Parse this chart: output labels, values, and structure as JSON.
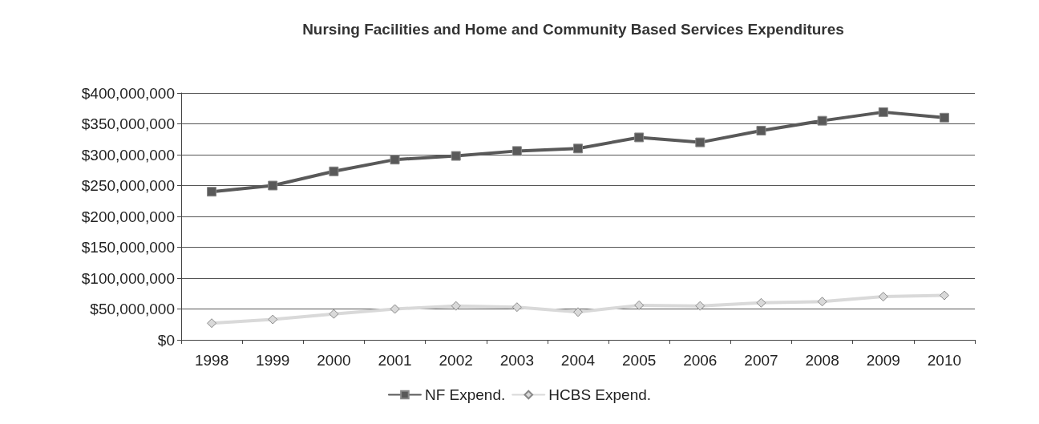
{
  "chart_data": {
    "type": "line",
    "title": "Nursing Facilities and Home and Community Based Services Expenditures",
    "categories": [
      "1998",
      "1999",
      "2000",
      "2001",
      "2002",
      "2003",
      "2004",
      "2005",
      "2006",
      "2007",
      "2008",
      "2009",
      "2010"
    ],
    "series": [
      {
        "name": "NF Expend.",
        "color": "#595959",
        "marker": "square",
        "values": [
          240000000,
          250000000,
          273000000,
          292000000,
          298000000,
          306000000,
          310000000,
          328000000,
          320000000,
          339000000,
          355000000,
          369000000,
          360000000
        ]
      },
      {
        "name": "HCBS Expend.",
        "color": "#d9d9d9",
        "marker": "diamond",
        "values": [
          27000000,
          33000000,
          42000000,
          50000000,
          55000000,
          53000000,
          45000000,
          56000000,
          55000000,
          60000000,
          62000000,
          70000000,
          72000000
        ]
      }
    ],
    "ylim": [
      0,
      400000000
    ],
    "yticks": [
      {
        "value": 0,
        "label": "$0"
      },
      {
        "value": 50000000,
        "label": "$50,000,000"
      },
      {
        "value": 100000000,
        "label": "$100,000,000"
      },
      {
        "value": 150000000,
        "label": "$150,000,000"
      },
      {
        "value": 200000000,
        "label": "$200,000,000"
      },
      {
        "value": 250000000,
        "label": "$250,000,000"
      },
      {
        "value": 300000000,
        "label": "$300,000,000"
      },
      {
        "value": 350000000,
        "label": "$350,000,000"
      },
      {
        "value": 400000000,
        "label": "$400,000,000"
      }
    ],
    "grid": "y",
    "legend": "bottom",
    "line_style": "solid"
  }
}
